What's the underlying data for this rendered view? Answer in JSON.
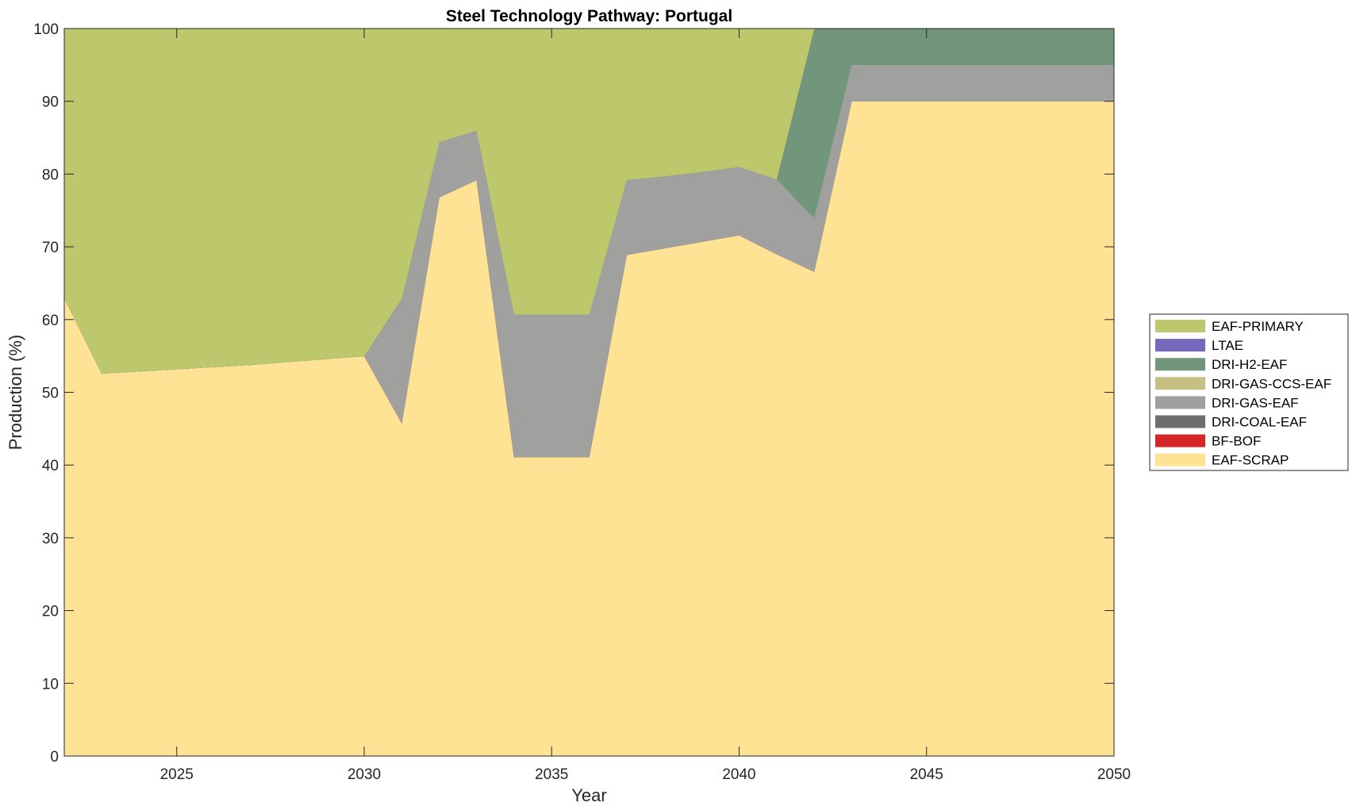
{
  "chart_data": {
    "type": "area",
    "stacked": true,
    "title": "Steel Technology Pathway: Portugal",
    "xlabel": "Year",
    "ylabel": "Production (%)",
    "xlim": [
      2022,
      2050
    ],
    "ylim": [
      0,
      100
    ],
    "xticks": [
      2025,
      2030,
      2035,
      2040,
      2045,
      2050
    ],
    "yticks": [
      0,
      10,
      20,
      30,
      40,
      50,
      60,
      70,
      80,
      90,
      100
    ],
    "grid": false,
    "legend_position": "right",
    "x": [
      2022,
      2023,
      2024,
      2025,
      2026,
      2027,
      2028,
      2029,
      2030,
      2031,
      2032,
      2033,
      2034,
      2035,
      2036,
      2037,
      2038,
      2039,
      2040,
      2041,
      2042,
      2043,
      2044,
      2045,
      2046,
      2047,
      2048,
      2049,
      2050
    ],
    "series": [
      {
        "name": "EAF-SCRAP",
        "color": "#FFE394",
        "values": [
          63,
          52.6,
          52.9,
          53.2,
          53.5,
          53.8,
          54.2,
          54.6,
          55,
          45.8,
          76.8,
          79.2,
          41.1,
          41.1,
          41.1,
          68.9,
          69.8,
          70.7,
          71.6,
          69,
          66.6,
          90,
          90,
          90,
          90,
          90,
          90,
          90,
          90
        ]
      },
      {
        "name": "BF-BOF",
        "color": "#D62728",
        "values": [
          0,
          0,
          0,
          0,
          0,
          0,
          0,
          0,
          0,
          0,
          0,
          0,
          0,
          0,
          0,
          0,
          0,
          0,
          0,
          0,
          0,
          0,
          0,
          0,
          0,
          0,
          0,
          0,
          0
        ]
      },
      {
        "name": "DRI-COAL-EAF",
        "color": "#6E6E6E",
        "values": [
          0,
          0,
          0,
          0,
          0,
          0,
          0,
          0,
          0,
          0,
          0,
          0,
          0,
          0,
          0,
          0,
          0,
          0,
          0,
          0,
          0,
          0,
          0,
          0,
          0,
          0,
          0,
          0,
          0
        ]
      },
      {
        "name": "DRI-GAS-EAF",
        "color": "#A0A09F",
        "values": [
          0,
          0,
          0,
          0,
          0,
          0,
          0,
          0,
          0,
          17.1,
          7.6,
          6.8,
          19.6,
          19.6,
          19.6,
          10.3,
          9.9,
          9.6,
          9.4,
          10.3,
          7.4,
          5,
          5,
          5,
          5,
          5,
          5,
          5,
          5
        ]
      },
      {
        "name": "DRI-GAS-CCS-EAF",
        "color": "#C6BF82",
        "values": [
          0,
          0,
          0,
          0,
          0,
          0,
          0,
          0,
          0,
          0,
          0,
          0,
          0,
          0,
          0,
          0,
          0,
          0,
          0,
          0,
          0,
          0,
          0,
          0,
          0,
          0,
          0,
          0,
          0
        ]
      },
      {
        "name": "DRI-H2-EAF",
        "color": "#72967C",
        "values": [
          0,
          0,
          0,
          0,
          0,
          0,
          0,
          0,
          0,
          0,
          0,
          0,
          0,
          0,
          0,
          0,
          0,
          0,
          0,
          0,
          26,
          5,
          5,
          5,
          5,
          5,
          5,
          5,
          5
        ]
      },
      {
        "name": "LTAE",
        "color": "#7568BD",
        "values": [
          0,
          0,
          0,
          0,
          0,
          0,
          0,
          0,
          0,
          0,
          0,
          0,
          0,
          0,
          0,
          0,
          0,
          0,
          0,
          0,
          0,
          0,
          0,
          0,
          0,
          0,
          0,
          0,
          0
        ]
      },
      {
        "name": "EAF-PRIMARY",
        "color": "#BDC76C",
        "values": [
          37,
          47.4,
          47.1,
          46.8,
          46.5,
          46.2,
          45.8,
          45.4,
          45,
          37.1,
          15.6,
          14,
          39.3,
          39.3,
          39.3,
          20.8,
          20.3,
          19.7,
          19,
          20.7,
          0,
          0,
          0,
          0,
          0,
          0,
          0,
          0,
          0
        ]
      }
    ],
    "legend_order": [
      "EAF-PRIMARY",
      "LTAE",
      "DRI-H2-EAF",
      "DRI-GAS-CCS-EAF",
      "DRI-GAS-EAF",
      "DRI-COAL-EAF",
      "BF-BOF",
      "EAF-SCRAP"
    ]
  }
}
